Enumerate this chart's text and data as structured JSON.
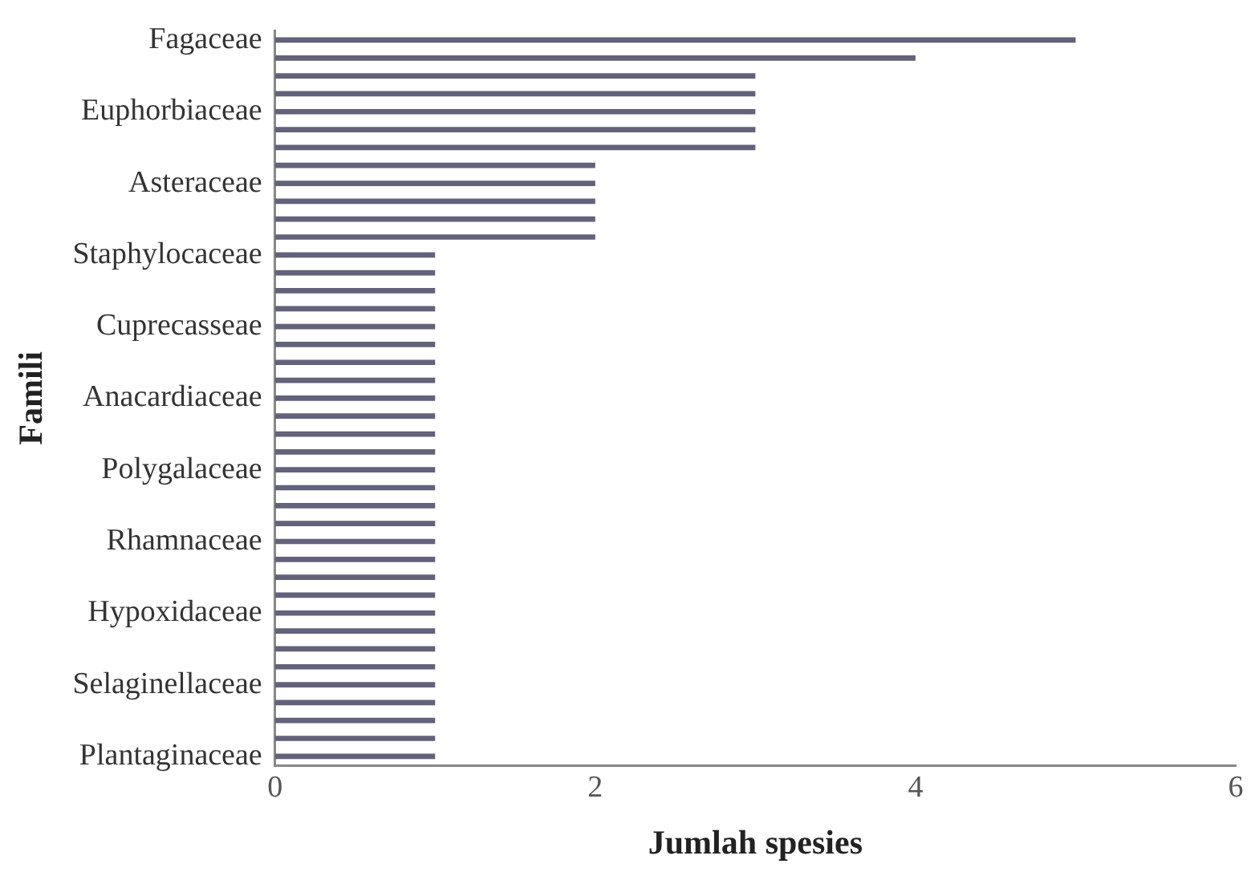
{
  "chart_data": {
    "type": "bar",
    "orientation": "horizontal",
    "xlabel": "Jumlah spesies",
    "ylabel": "Famili",
    "categories": [
      "Fagaceae",
      null,
      null,
      null,
      "Euphorbiaceae",
      null,
      null,
      null,
      "Asteraceae",
      null,
      null,
      null,
      "Staphylocaceae",
      null,
      null,
      null,
      "Cuprecasseae",
      null,
      null,
      null,
      "Anacardiaceae",
      null,
      null,
      null,
      "Polygalaceae",
      null,
      null,
      null,
      "Rhamnaceae",
      null,
      null,
      null,
      "Hypoxidaceae",
      null,
      null,
      null,
      "Selaginellaceae",
      null,
      null,
      null,
      "Plantaginaceae"
    ],
    "values": [
      5,
      4,
      3,
      3,
      3,
      3,
      3,
      2,
      2,
      2,
      2,
      2,
      1,
      1,
      1,
      1,
      1,
      1,
      1,
      1,
      1,
      1,
      1,
      1,
      1,
      1,
      1,
      1,
      1,
      1,
      1,
      1,
      1,
      1,
      1,
      1,
      1,
      1,
      1,
      1,
      1
    ],
    "color": "#62627a",
    "xlim": [
      0,
      6
    ],
    "xticks": [
      0,
      2,
      4,
      6
    ],
    "grid": false
  }
}
